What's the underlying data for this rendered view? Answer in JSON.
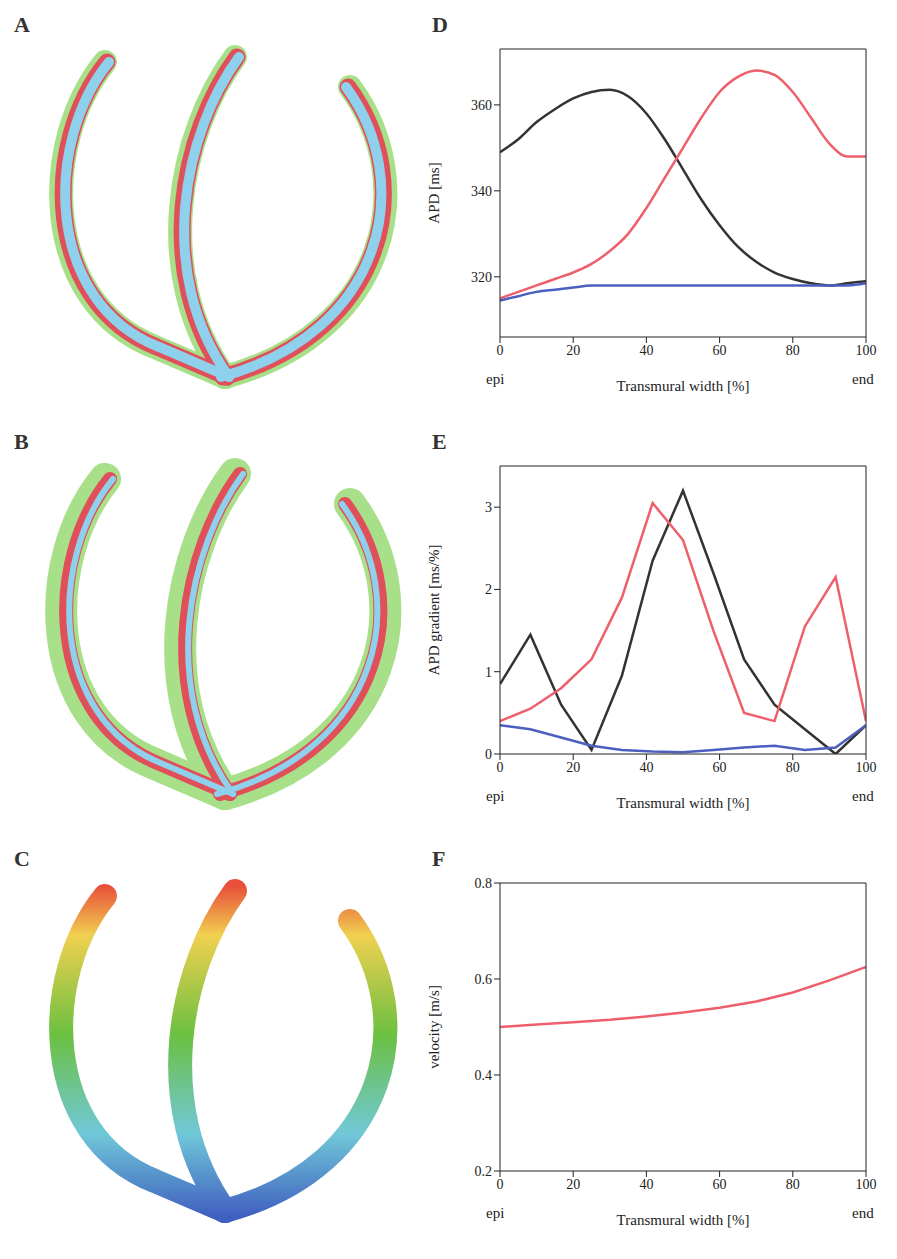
{
  "chart_data": [
    {
      "type": "line",
      "title": "D",
      "xlabel": "Transmural width [%]",
      "ylabel": "APD [ms]",
      "annotations": [
        "epi",
        "end"
      ],
      "x": [
        0,
        5,
        10,
        15,
        20,
        25,
        30,
        35,
        40,
        45,
        50,
        55,
        60,
        65,
        70,
        75,
        80,
        85,
        90,
        95,
        100
      ],
      "xlim": [
        0,
        100
      ],
      "xticks": [
        0,
        20,
        40,
        60,
        80,
        100
      ],
      "ylim": [
        306,
        373
      ],
      "yticks": [
        320,
        340,
        360
      ],
      "series": [
        {
          "color": "#333333",
          "values": [
            349,
            352,
            356,
            359,
            361.5,
            363,
            363.5,
            362,
            358,
            352,
            345,
            338,
            332,
            327,
            323.5,
            321,
            319.5,
            318.5,
            318,
            318.5,
            319
          ]
        },
        {
          "color": "#ee5f6c",
          "values": [
            315,
            316.5,
            318,
            319.5,
            321,
            323,
            326,
            330,
            336,
            343,
            350,
            357,
            363,
            366.5,
            368,
            367,
            363,
            357,
            351,
            348,
            348
          ]
        },
        {
          "color": "#4c5fbf",
          "values": [
            314.5,
            315.5,
            316.5,
            317,
            317.5,
            318,
            318,
            318,
            318,
            318,
            318,
            318,
            318,
            318,
            318,
            318,
            318,
            318,
            318,
            318,
            318.5
          ]
        }
      ]
    },
    {
      "type": "line",
      "title": "E",
      "xlabel": "Transmural width [%]",
      "ylabel": "APD gradient [ms/%]",
      "annotations": [
        "epi",
        "end"
      ],
      "x": [
        0,
        8.3,
        16.7,
        25,
        33.3,
        41.7,
        50,
        58.3,
        66.7,
        75,
        83.3,
        91.7,
        100
      ],
      "xlim": [
        0,
        100
      ],
      "xticks": [
        0,
        20,
        40,
        60,
        80,
        100
      ],
      "ylim": [
        0,
        3.5
      ],
      "yticks": [
        0,
        1,
        2,
        3
      ],
      "series": [
        {
          "color": "#333333",
          "values": [
            0.85,
            1.45,
            0.6,
            0.05,
            0.95,
            2.35,
            3.2,
            2.2,
            1.15,
            0.6,
            0.3,
            0.0,
            0.35
          ]
        },
        {
          "color": "#ee5f6c",
          "values": [
            0.4,
            0.55,
            0.8,
            1.15,
            1.9,
            3.05,
            2.6,
            1.5,
            0.5,
            0.4,
            1.55,
            2.15,
            0.4
          ]
        },
        {
          "color": "#4c5fbf",
          "values": [
            0.35,
            0.3,
            0.2,
            0.1,
            0.05,
            0.03,
            0.02,
            0.05,
            0.08,
            0.1,
            0.05,
            0.08,
            0.35
          ]
        }
      ]
    },
    {
      "type": "line",
      "title": "F",
      "xlabel": "Transmural width [%]",
      "ylabel": "velocity [m/s]",
      "annotations": [
        "epi",
        "end"
      ],
      "x": [
        0,
        10,
        20,
        30,
        40,
        50,
        60,
        70,
        80,
        90,
        100
      ],
      "xlim": [
        0,
        100
      ],
      "xticks": [
        0,
        20,
        40,
        60,
        80,
        100
      ],
      "ylim": [
        0.2,
        0.8
      ],
      "yticks": [
        0.2,
        0.4,
        0.6,
        0.8
      ],
      "series": [
        {
          "color": "#ee5f6c",
          "values": [
            0.5,
            0.505,
            0.51,
            0.515,
            0.522,
            0.53,
            0.54,
            0.553,
            0.572,
            0.597,
            0.625
          ]
        }
      ]
    }
  ],
  "diagrams": [
    {
      "label": "A"
    },
    {
      "label": "B"
    },
    {
      "label": "C"
    }
  ]
}
